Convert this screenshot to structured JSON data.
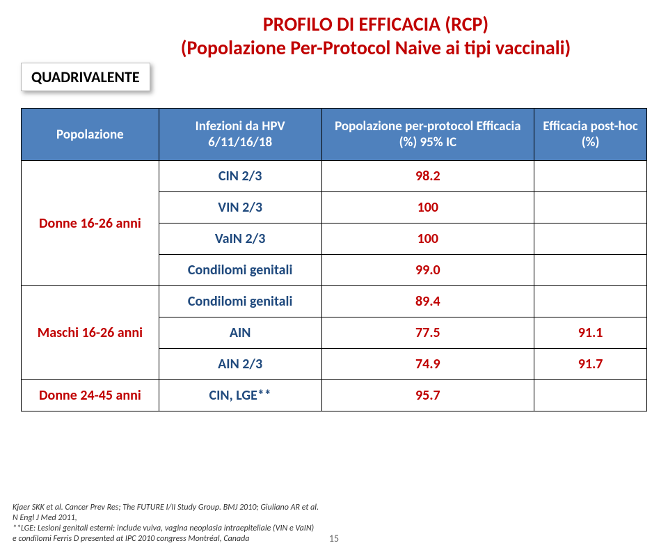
{
  "title": {
    "line1": "PROFILO DI EFFICACIA (RCP)",
    "line2": "(Popolazione Per-Protocol Naive ai tipi vaccinali)"
  },
  "badge": "QUADRIVALENTE",
  "header": {
    "c1": "Popolazione",
    "c2": "Infezioni da HPV 6/11/16/18",
    "c3": "Popolazione per-protocol Efficacia (%) 95% IC",
    "c4": "Efficacia post-hoc (%)"
  },
  "groups": [
    {
      "label": "Donne 16-26 anni",
      "rows": [
        {
          "endpoint": "CIN 2/3",
          "val": "98.2",
          "post": ""
        },
        {
          "endpoint": "VIN 2/3",
          "val": "100",
          "post": ""
        },
        {
          "endpoint": "VaIN 2/3",
          "val": "100",
          "post": ""
        },
        {
          "endpoint": "Condilomi genitali",
          "val": "99.0",
          "post": ""
        }
      ]
    },
    {
      "label": "Maschi 16-26 anni",
      "rows": [
        {
          "endpoint": "Condilomi genitali",
          "val": "89.4",
          "post": ""
        },
        {
          "endpoint": "AIN",
          "val": "77.5",
          "post": "91.1"
        },
        {
          "endpoint": "AIN 2/3",
          "val": "74.9",
          "post": "91.7"
        }
      ]
    },
    {
      "label": "Donne 24-45 anni",
      "rows": [
        {
          "endpoint": "CIN, LGE**",
          "val": "95.7",
          "post": ""
        }
      ]
    }
  ],
  "refs": {
    "l1": "Kjaer SKK et al. Cancer Prev Res; The FUTURE I/II Study Group. BMJ 2010; Giuliano AR et al.",
    "l2": "N Engl J Med 2011,",
    "l3": "**LGE: Lesioni genitali esterni: include vulva, vagina neoplasia intraepiteliale (VIN e VaIN)",
    "l4": "e condilomi Ferris D presented at IPC 2010 congress Montréal, Canada"
  },
  "page": "15"
}
